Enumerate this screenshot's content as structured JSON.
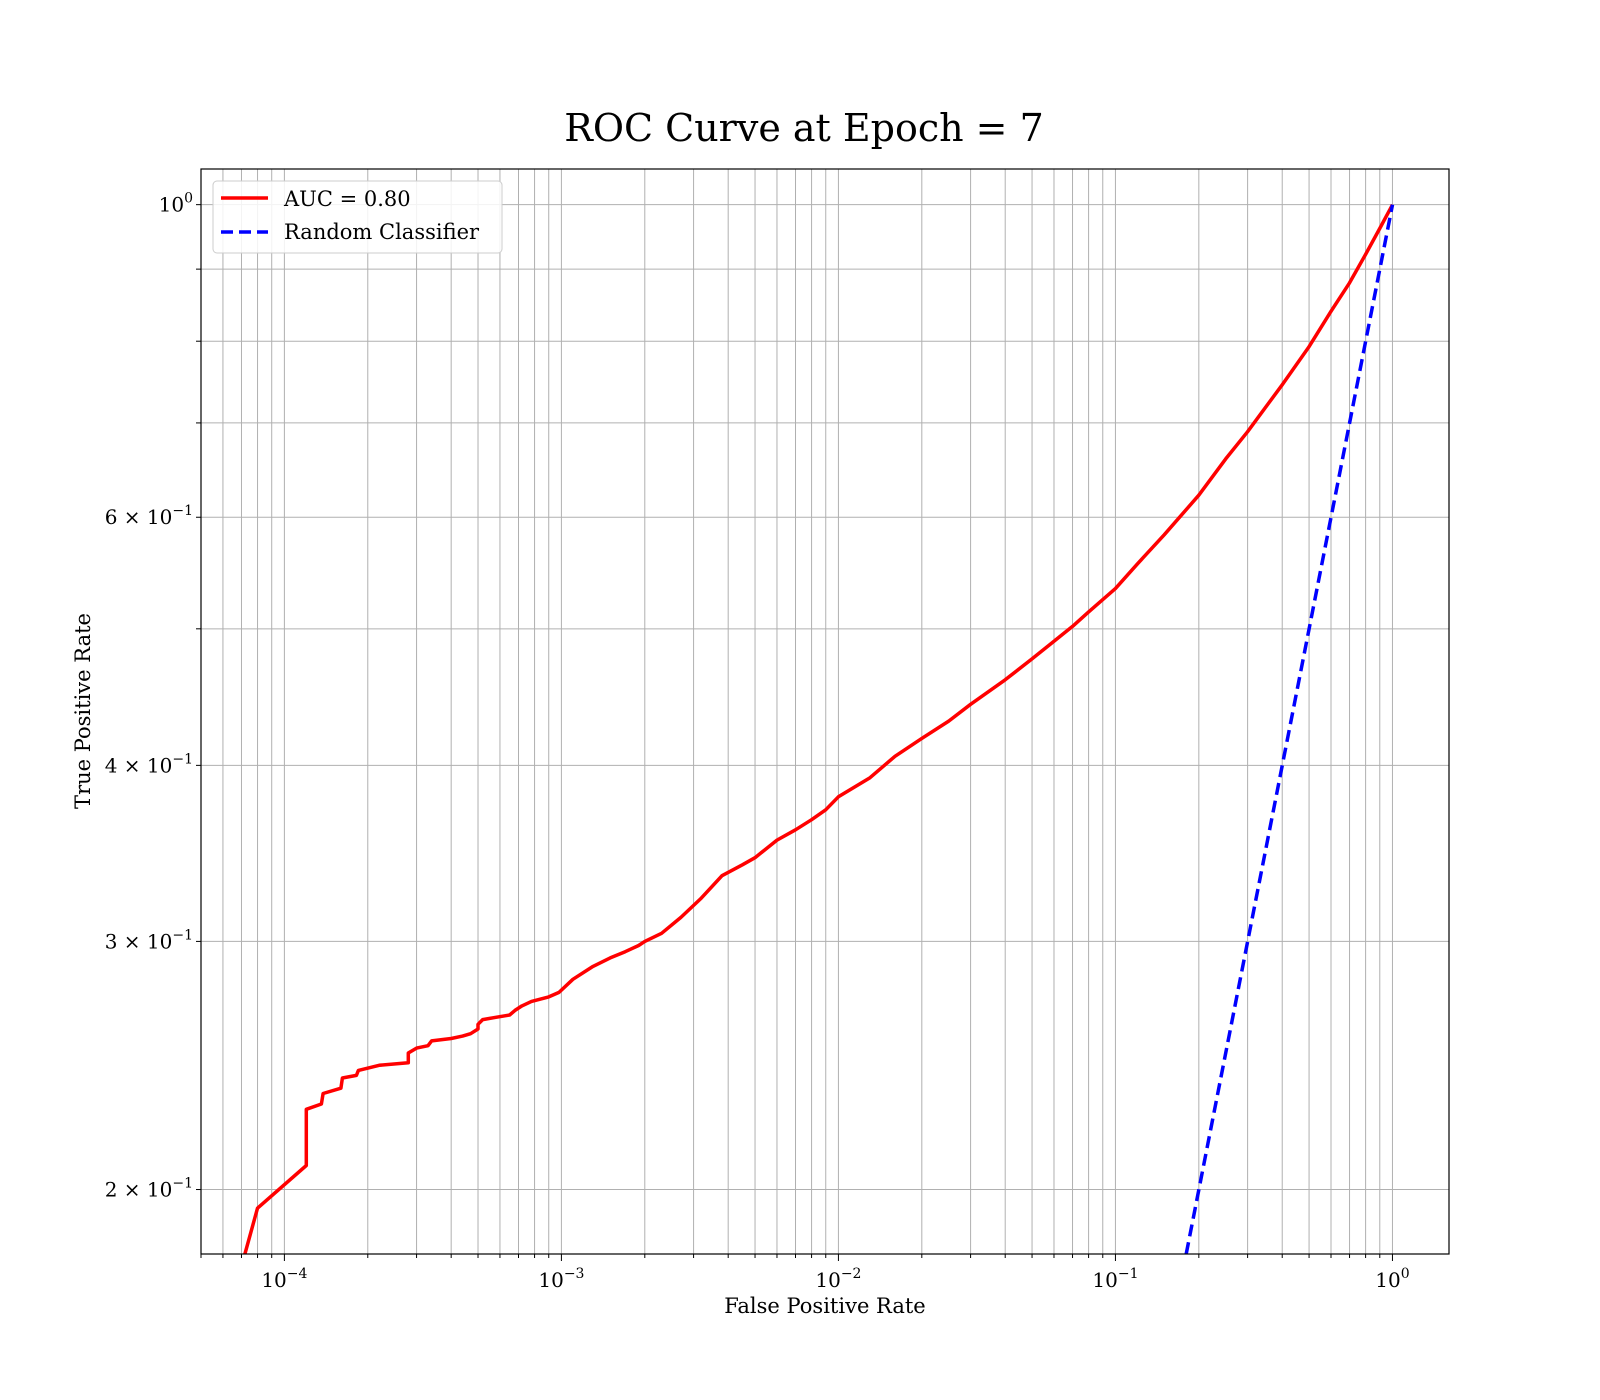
{
  "chart_data": {
    "type": "line",
    "title": "ROC Curve at Epoch = 7",
    "xlabel": "False Positive Rate",
    "ylabel": "True Positive Rate",
    "xscale": "log",
    "yscale": "log",
    "xlim": [
      5e-05,
      1.6
    ],
    "ylim": [
      0.18,
      1.06
    ],
    "grid": "major and minor",
    "legend_position": "top-left",
    "x_ticks": [
      {
        "value": 0.0001,
        "base": "10",
        "exp": "−4"
      },
      {
        "value": 0.001,
        "base": "10",
        "exp": "−3"
      },
      {
        "value": 0.01,
        "base": "10",
        "exp": "−2"
      },
      {
        "value": 0.1,
        "base": "10",
        "exp": "−1"
      },
      {
        "value": 1,
        "base": "10",
        "exp": "0"
      }
    ],
    "y_ticks": [
      {
        "value": 0.2,
        "base": "2 × 10",
        "exp": "−1"
      },
      {
        "value": 0.3,
        "base": "3 × 10",
        "exp": "−1"
      },
      {
        "value": 0.4,
        "base": "4 × 10",
        "exp": "−1"
      },
      {
        "value": 0.6,
        "base": "6 × 10",
        "exp": "−1"
      },
      {
        "value": 1,
        "base": "10",
        "exp": "0"
      }
    ],
    "series": [
      {
        "name": "AUC = 0.80",
        "color": "#ff0000",
        "style": "solid",
        "x": [
          7.2e-05,
          8e-05,
          0.00012,
          0.00012,
          0.000136,
          0.000138,
          0.00016,
          0.000162,
          0.000182,
          0.000185,
          0.00022,
          0.00028,
          0.00028,
          0.0003,
          0.00033,
          0.00034,
          0.0004,
          0.00044,
          0.00047,
          0.0005,
          0.0005,
          0.00052,
          0.00058,
          0.00065,
          0.00068,
          0.00072,
          0.00078,
          0.0009,
          0.00098,
          0.0011,
          0.0013,
          0.0015,
          0.0017,
          0.0019,
          0.002,
          0.0023,
          0.0027,
          0.0032,
          0.0038,
          0.0045,
          0.005,
          0.006,
          0.007,
          0.008,
          0.009,
          0.01,
          0.013,
          0.016,
          0.02,
          0.025,
          0.03,
          0.04,
          0.05,
          0.06,
          0.07,
          0.08,
          0.1,
          0.12,
          0.15,
          0.2,
          0.25,
          0.3,
          0.4,
          0.5,
          0.6,
          0.7,
          0.8,
          0.9,
          1.0
        ],
        "y": [
          0.18,
          0.194,
          0.208,
          0.228,
          0.23,
          0.234,
          0.236,
          0.24,
          0.241,
          0.243,
          0.245,
          0.246,
          0.25,
          0.252,
          0.253,
          0.255,
          0.256,
          0.257,
          0.258,
          0.26,
          0.262,
          0.264,
          0.265,
          0.266,
          0.268,
          0.27,
          0.272,
          0.274,
          0.276,
          0.282,
          0.288,
          0.292,
          0.295,
          0.298,
          0.3,
          0.304,
          0.312,
          0.322,
          0.334,
          0.34,
          0.344,
          0.354,
          0.36,
          0.366,
          0.372,
          0.38,
          0.392,
          0.406,
          0.418,
          0.43,
          0.442,
          0.46,
          0.476,
          0.49,
          0.502,
          0.514,
          0.534,
          0.556,
          0.583,
          0.622,
          0.66,
          0.69,
          0.745,
          0.793,
          0.84,
          0.88,
          0.922,
          0.962,
          1.0
        ]
      },
      {
        "name": "Random Classifier",
        "color": "#0000ff",
        "style": "dashed",
        "x": [
          0.18,
          1.0
        ],
        "y": [
          0.18,
          1.0
        ]
      }
    ]
  }
}
